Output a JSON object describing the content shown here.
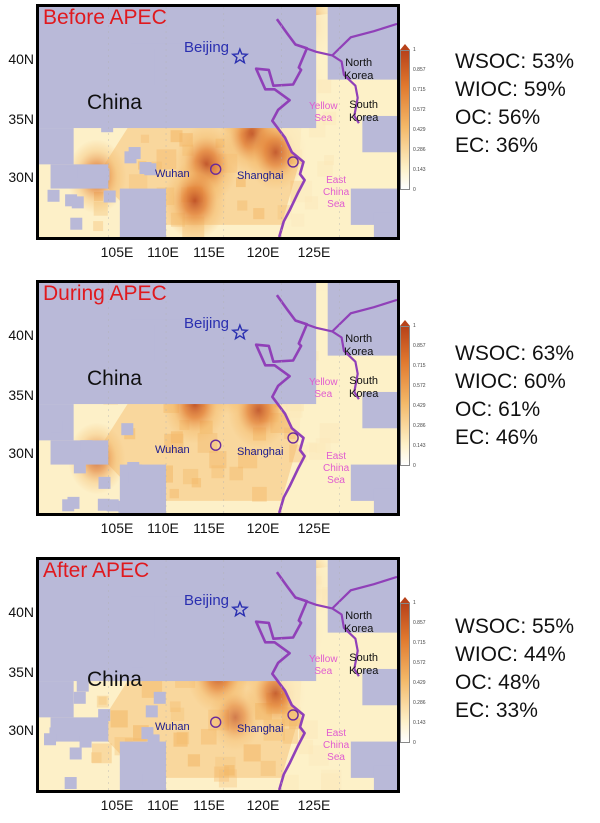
{
  "x_ticks": [
    "105E",
    "110E",
    "115E",
    "120E",
    "125E"
  ],
  "y_ticks": [
    "40N",
    "35N",
    "30N"
  ],
  "colorbar_ticks": [
    "1",
    "0.857",
    "0.715",
    "0.572",
    "0.429",
    "0.286",
    "0.143",
    "0"
  ],
  "colors": {
    "land_low": "#fdf0c8",
    "land_mid": "#f3b868",
    "land_high": "#e0782e",
    "land_max": "#b8421a",
    "missing": "#b9b9d8",
    "coastline": "#9040b8",
    "title": "#e0191e",
    "beijing": "#2a2fb0",
    "sea_label": "#e05bd0"
  },
  "labels": {
    "china": "China",
    "beijing": "Beijing",
    "wuhan": "Wuhan",
    "shanghai": "Shanghai",
    "north_korea": "North\nKorea",
    "south_korea": "South\nKorea",
    "yellow_sea": "Yellow\nSea",
    "east_china_sea": "East\nChina\nSea"
  },
  "panels": [
    {
      "title": "Before APEC",
      "stats": [
        "WSOC: 53%",
        "WIOC: 59%",
        "OC: 56%",
        "EC: 36%"
      ],
      "hotspots": [
        {
          "lon": 117.5,
          "lat": 33.5,
          "level": 0.95
        },
        {
          "lon": 113.5,
          "lat": 31.0,
          "level": 0.9
        },
        {
          "lon": 112.5,
          "lat": 28.0,
          "level": 0.9
        },
        {
          "lon": 119.5,
          "lat": 32.0,
          "level": 0.85
        },
        {
          "lon": 116.0,
          "lat": 36.5,
          "level": 0.8
        },
        {
          "lon": 121.0,
          "lat": 38.0,
          "level": 0.8
        },
        {
          "lon": 104.0,
          "lat": 30.0,
          "level": 0.8
        },
        {
          "lon": 122.0,
          "lat": 42.5,
          "level": 0.75
        }
      ]
    },
    {
      "title": "During APEC",
      "stats": [
        "WSOC: 63%",
        "WIOC: 60%",
        "OC: 61%",
        "EC: 46%"
      ],
      "hotspots": [
        {
          "lon": 112.5,
          "lat": 34.0,
          "level": 0.9
        },
        {
          "lon": 118.0,
          "lat": 33.5,
          "level": 0.85
        },
        {
          "lon": 115.5,
          "lat": 36.0,
          "level": 0.7
        },
        {
          "lon": 104.0,
          "lat": 29.5,
          "level": 0.75
        },
        {
          "lon": 119.0,
          "lat": 37.0,
          "level": 0.6
        }
      ]
    },
    {
      "title": "After APEC",
      "stats": [
        "WSOC: 55%",
        "WIOC: 44%",
        "OC: 48%",
        "EC: 33%"
      ],
      "hotspots": [
        {
          "lon": 116.0,
          "lat": 36.5,
          "level": 0.95
        },
        {
          "lon": 114.5,
          "lat": 34.5,
          "level": 0.85
        },
        {
          "lon": 119.5,
          "lat": 33.0,
          "level": 0.8
        },
        {
          "lon": 121.0,
          "lat": 38.0,
          "level": 0.8
        },
        {
          "lon": 122.0,
          "lat": 42.0,
          "level": 0.75
        },
        {
          "lon": 116.0,
          "lat": 31.0,
          "level": 0.65
        }
      ]
    }
  ]
}
